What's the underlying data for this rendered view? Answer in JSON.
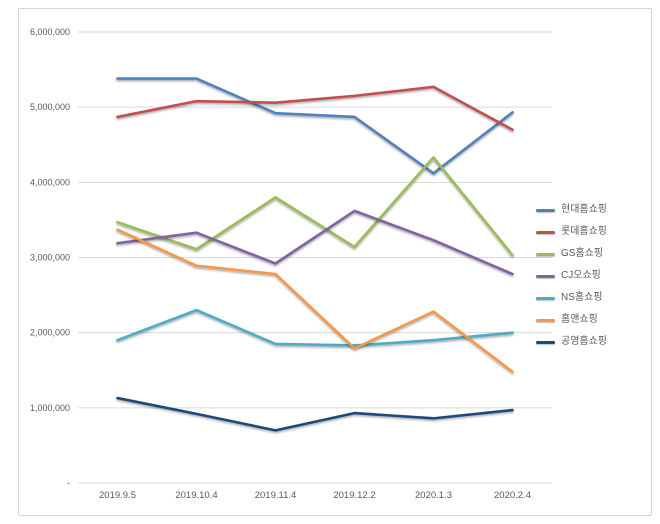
{
  "chart": {
    "frame_border_color": "#d4d4d4",
    "background_color": "#ffffff",
    "gridline_color": "#d9d9d9",
    "axis_text_color": "#595959"
  },
  "chart_data": {
    "type": "line",
    "title": "",
    "categories": [
      "2019.9.5",
      "2019.10.4",
      "2019.11.4",
      "2019.12.2",
      "2020.1.3",
      "2020.2.4"
    ],
    "series": [
      {
        "name": "현대홈쇼핑",
        "color": "#4F81BD",
        "values": [
          5380000,
          5380000,
          4920000,
          4870000,
          4120000,
          4930000
        ]
      },
      {
        "name": "롯데홈쇼핑",
        "color": "#C0504D",
        "values": [
          4870000,
          5080000,
          5060000,
          5150000,
          5270000,
          4700000
        ]
      },
      {
        "name": "GS홈쇼핑",
        "color": "#9BBB59",
        "values": [
          3470000,
          3110000,
          3800000,
          3140000,
          4330000,
          3030000
        ]
      },
      {
        "name": "CJ오쇼핑",
        "color": "#8064A2",
        "values": [
          3190000,
          3330000,
          2920000,
          3620000,
          3230000,
          2780000
        ]
      },
      {
        "name": "NS홈쇼핑",
        "color": "#4BACC6",
        "values": [
          1900000,
          2300000,
          1850000,
          1830000,
          1900000,
          2000000
        ]
      },
      {
        "name": "홈앤쇼핑",
        "color": "#F79646",
        "values": [
          3370000,
          2890000,
          2780000,
          1790000,
          2280000,
          1480000
        ]
      },
      {
        "name": "공영홈쇼핑",
        "color": "#1F497D",
        "values": [
          1130000,
          920000,
          700000,
          930000,
          860000,
          970000
        ]
      }
    ],
    "ylim": [
      0,
      6000000
    ],
    "ytick_interval": 1000000,
    "ytick_labels": [
      "-",
      "1,000,000",
      "2,000,000",
      "3,000,000",
      "4,000,000",
      "5,000,000",
      "6,000,000"
    ],
    "grid": true,
    "legend_position": "right"
  }
}
